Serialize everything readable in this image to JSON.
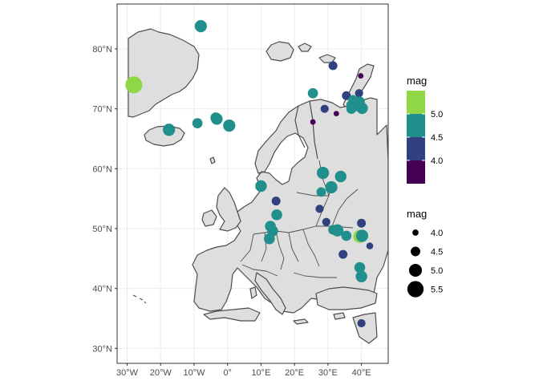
{
  "chart_data": {
    "type": "scatter",
    "title": "",
    "xlabel": "",
    "ylabel": "",
    "xlim": [
      -33,
      48
    ],
    "ylim": [
      27.5,
      87.5
    ],
    "grid": true,
    "x_ticks": [
      {
        "value": -30,
        "label": "30°W"
      },
      {
        "value": -20,
        "label": "20°W"
      },
      {
        "value": -10,
        "label": "10°W"
      },
      {
        "value": 0,
        "label": "0°"
      },
      {
        "value": 10,
        "label": "10°E"
      },
      {
        "value": 20,
        "label": "20°E"
      },
      {
        "value": 30,
        "label": "30°E"
      },
      {
        "value": 40,
        "label": "40°E"
      }
    ],
    "y_ticks": [
      {
        "value": 30,
        "label": "30°N"
      },
      {
        "value": 40,
        "label": "40°N"
      },
      {
        "value": 50,
        "label": "50°N"
      },
      {
        "value": 60,
        "label": "60°N"
      },
      {
        "value": 70,
        "label": "70°N"
      },
      {
        "value": 80,
        "label": "80°N"
      }
    ],
    "color_legend": {
      "title": "mag",
      "placement": "right",
      "bins": [
        {
          "label": "5.0",
          "color": "#8fd744"
        },
        {
          "label": "4.5",
          "color": "#21908c"
        },
        {
          "label": "4.0",
          "color": "#31407e"
        },
        {
          "label": "",
          "color": "#440154"
        }
      ]
    },
    "size_legend": {
      "title": "mag",
      "placement": "right",
      "entries": [
        {
          "label": "4.0",
          "mag": 4.0
        },
        {
          "label": "4.5",
          "mag": 4.5
        },
        {
          "label": "5.0",
          "mag": 5.0
        },
        {
          "label": "5.5",
          "mag": 5.5
        }
      ]
    },
    "points": [
      {
        "lon": -28,
        "lat": 74.0,
        "mag": 5.6
      },
      {
        "lon": -8,
        "lat": 83.8,
        "mag": 4.9
      },
      {
        "lon": -17.5,
        "lat": 66.5,
        "mag": 4.9
      },
      {
        "lon": -9,
        "lat": 67.6,
        "mag": 4.6
      },
      {
        "lon": -3.5,
        "lat": 68.5,
        "mag": 4.7
      },
      {
        "lon": -3.2,
        "lat": 68.3,
        "mag": 4.8
      },
      {
        "lon": 0.5,
        "lat": 67.2,
        "mag": 4.9
      },
      {
        "lon": 25.5,
        "lat": 72.6,
        "mag": 4.6
      },
      {
        "lon": 31.5,
        "lat": 77.2,
        "mag": 4.4
      },
      {
        "lon": 39.8,
        "lat": 75.5,
        "mag": 3.9
      },
      {
        "lon": 39.5,
        "lat": 72.8,
        "mag": 3.9
      },
      {
        "lon": 39.3,
        "lat": 72.6,
        "mag": 4.3
      },
      {
        "lon": 35.5,
        "lat": 72.2,
        "mag": 4.4
      },
      {
        "lon": 37.5,
        "lat": 71.5,
        "mag": 4.5
      },
      {
        "lon": 39.5,
        "lat": 71.2,
        "mag": 4.6
      },
      {
        "lon": 37.0,
        "lat": 70.6,
        "mag": 4.6
      },
      {
        "lon": 38.5,
        "lat": 70.4,
        "mag": 4.5
      },
      {
        "lon": 37.0,
        "lat": 70.0,
        "mag": 4.6
      },
      {
        "lon": 40.2,
        "lat": 70.1,
        "mag": 4.8
      },
      {
        "lon": 29.0,
        "lat": 70.0,
        "mag": 4.3
      },
      {
        "lon": 32.5,
        "lat": 69.2,
        "mag": 3.9
      },
      {
        "lon": 25.5,
        "lat": 67.8,
        "mag": 3.9
      },
      {
        "lon": 28.5,
        "lat": 59.3,
        "mag": 4.9
      },
      {
        "lon": 33.8,
        "lat": 58.7,
        "mag": 4.8
      },
      {
        "lon": 31.0,
        "lat": 56.9,
        "mag": 4.9
      },
      {
        "lon": 28.0,
        "lat": 56.1,
        "mag": 4.5
      },
      {
        "lon": 27.5,
        "lat": 53.3,
        "mag": 4.3
      },
      {
        "lon": 10.0,
        "lat": 57.1,
        "mag": 4.8
      },
      {
        "lon": 14.5,
        "lat": 54.6,
        "mag": 4.4
      },
      {
        "lon": 14.7,
        "lat": 52.3,
        "mag": 4.7
      },
      {
        "lon": 29.5,
        "lat": 51.1,
        "mag": 4.3
      },
      {
        "lon": 12.8,
        "lat": 50.4,
        "mag": 4.7
      },
      {
        "lon": 13.5,
        "lat": 49.6,
        "mag": 4.7
      },
      {
        "lon": 31.5,
        "lat": 49.8,
        "mag": 4.5
      },
      {
        "lon": 32.8,
        "lat": 49.7,
        "mag": 4.9
      },
      {
        "lon": 35.5,
        "lat": 48.8,
        "mag": 4.6
      },
      {
        "lon": 39.5,
        "lat": 48.7,
        "mag": 5.0
      },
      {
        "lon": 40.2,
        "lat": 48.8,
        "mag": 4.9
      },
      {
        "lon": 12.5,
        "lat": 48.3,
        "mag": 4.7
      },
      {
        "lon": 40.0,
        "lat": 50.9,
        "mag": 4.4
      },
      {
        "lon": 42.5,
        "lat": 47.1,
        "mag": 4.1
      },
      {
        "lon": 34.5,
        "lat": 45.7,
        "mag": 4.4
      },
      {
        "lon": 39.5,
        "lat": 43.5,
        "mag": 4.7
      },
      {
        "lon": 40.0,
        "lat": 42.0,
        "mag": 4.8
      },
      {
        "lon": 40.0,
        "lat": 34.2,
        "mag": 4.3
      }
    ]
  }
}
